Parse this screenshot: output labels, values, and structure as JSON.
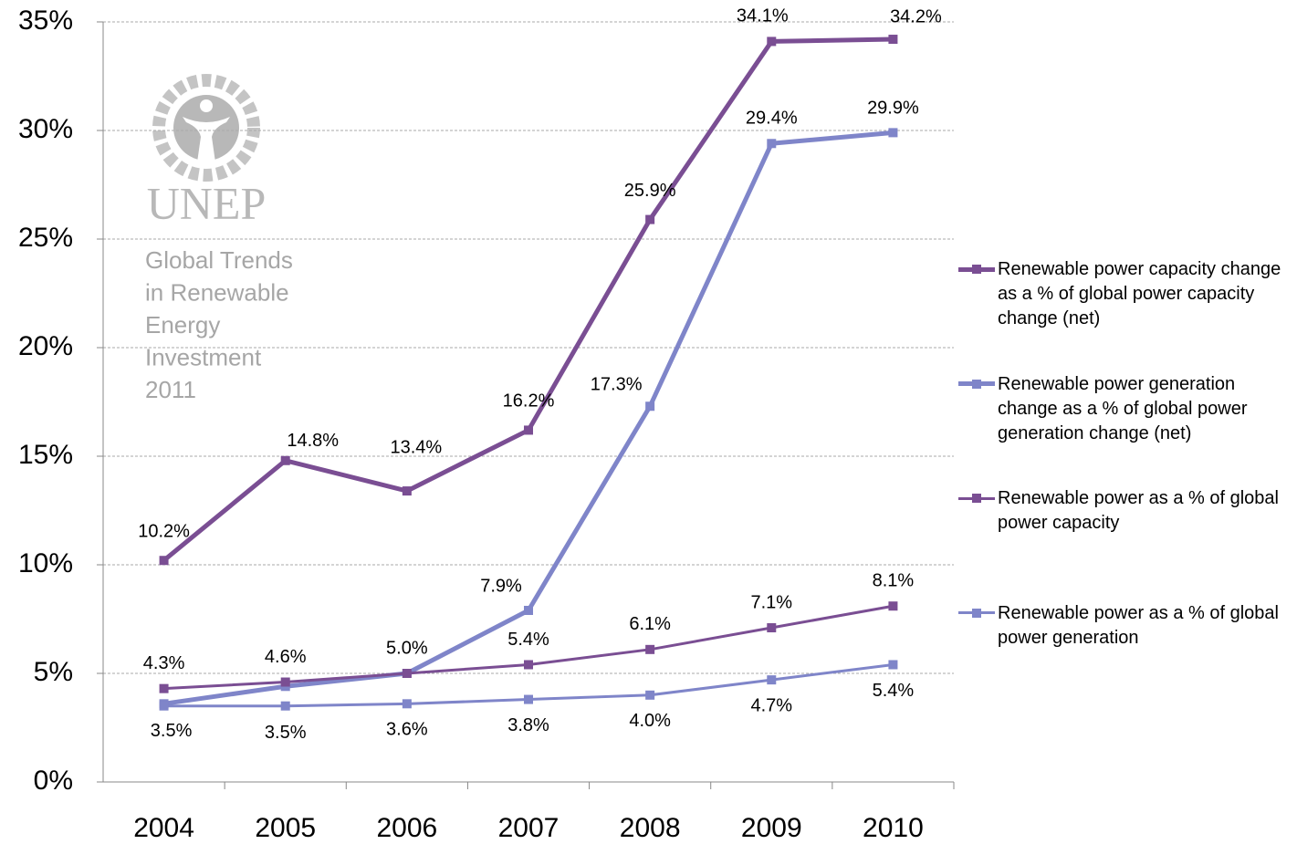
{
  "chart_data": {
    "type": "line",
    "watermark": {
      "logo": "UNEP",
      "lines": [
        "Global Trends",
        "in Renewable",
        "Energy",
        "Investment",
        "2011"
      ]
    },
    "categories": [
      "2004",
      "2005",
      "2006",
      "2007",
      "2008",
      "2009",
      "2010"
    ],
    "series": [
      {
        "name": "Renewable power capacity change as a % of global power capacity change (net)",
        "color": "#7a4e93",
        "width": 5,
        "values": [
          10.2,
          14.8,
          13.4,
          16.2,
          25.9,
          34.1,
          34.2
        ],
        "value_labels": [
          "10.2%",
          "14.8%",
          "13.4%",
          "16.2%",
          "25.9%",
          "34.1%",
          "34.2%"
        ]
      },
      {
        "name": "Renewable power generation change as a % of global power generation change (net)",
        "color": "#7f85c9",
        "width": 5,
        "values": [
          3.6,
          4.4,
          5.0,
          7.9,
          17.3,
          29.4,
          29.9
        ],
        "value_labels": [
          null,
          null,
          null,
          "7.9%",
          "17.3%",
          "29.4%",
          "29.9%"
        ]
      },
      {
        "name": "Renewable power as a % of global power capacity",
        "color": "#7a4e93",
        "width": 3,
        "values": [
          4.3,
          4.6,
          5.0,
          5.4,
          6.1,
          7.1,
          8.1
        ],
        "value_labels": [
          "4.3%",
          "4.6%",
          "5.0%",
          "5.4%",
          "6.1%",
          "7.1%",
          "8.1%"
        ]
      },
      {
        "name": "Renewable power as a % of global power generation",
        "color": "#7f85c9",
        "width": 3,
        "values": [
          3.5,
          3.5,
          3.6,
          3.8,
          4.0,
          4.7,
          5.4
        ],
        "value_labels": [
          "3.5%",
          "3.5%",
          "3.6%",
          "3.8%",
          "4.0%",
          "4.7%",
          "5.4%"
        ]
      }
    ],
    "ylim": [
      0,
      35
    ],
    "yticks": [
      {
        "value": 0,
        "label": "0%"
      },
      {
        "value": 5,
        "label": "5%"
      },
      {
        "value": 10,
        "label": "10%"
      },
      {
        "value": 15,
        "label": "15%"
      },
      {
        "value": 20,
        "label": "20%"
      },
      {
        "value": 25,
        "label": "25%"
      },
      {
        "value": 30,
        "label": "30%"
      },
      {
        "value": 35,
        "label": "35%"
      }
    ],
    "grid": true,
    "legend": "right"
  }
}
